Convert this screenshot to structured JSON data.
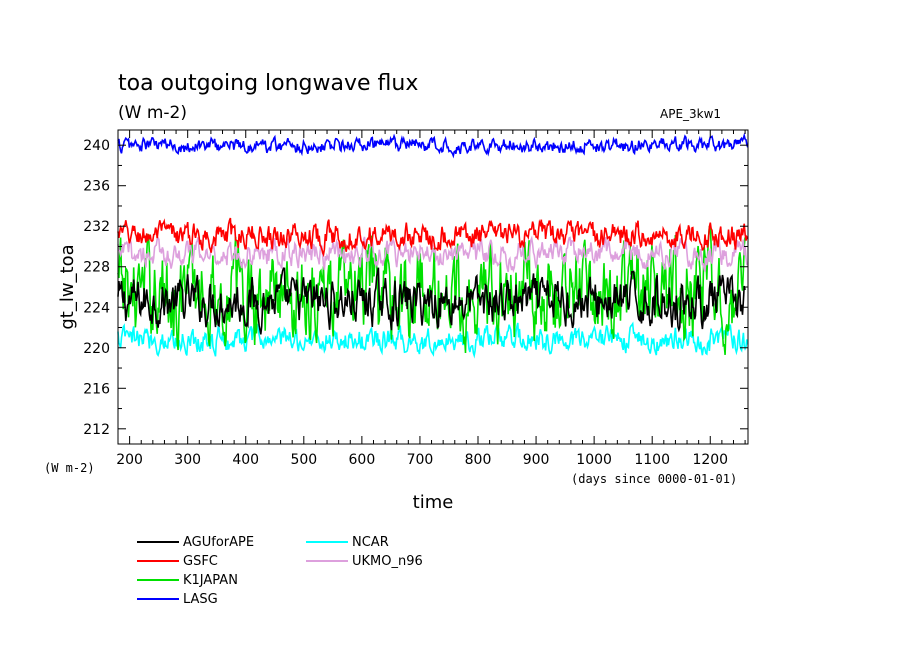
{
  "chart_data": {
    "type": "line",
    "title": "toa outgoing longwave flux",
    "units_title": "(W m-2)",
    "tag": "APE_3kw1",
    "xlabel": "time",
    "ylabel": "gt_lw_toa",
    "y_unit_label": "(W m-2)",
    "x_unit_label": "(days since 0000-01-01)",
    "xlim": [
      180,
      1265
    ],
    "ylim": [
      210.5,
      241.5
    ],
    "x_ticks": [
      200,
      300,
      400,
      500,
      600,
      700,
      800,
      900,
      1000,
      1100,
      1200
    ],
    "y_ticks": [
      212,
      216,
      220,
      224,
      228,
      232,
      236,
      240
    ],
    "series": [
      {
        "name": "AGUforAPE",
        "color": "#000000",
        "x_start": 180,
        "x_end": 1260,
        "mean": 224.6,
        "amp": 1.8
      },
      {
        "name": "GSFC",
        "color": "#ff0000",
        "x_start": 180,
        "x_end": 1265,
        "mean": 231.1,
        "amp": 1.0
      },
      {
        "name": "K1JAPAN",
        "color": "#00e000",
        "x_start": 180,
        "x_end": 1260,
        "mean": 225.5,
        "amp": 3.6
      },
      {
        "name": "LASG",
        "color": "#0000ff",
        "x_start": 180,
        "x_end": 1265,
        "mean": 240.0,
        "amp": 0.6
      },
      {
        "name": "NCAR",
        "color": "#00ffff",
        "x_start": 180,
        "x_end": 1265,
        "mean": 220.8,
        "amp": 1.0
      },
      {
        "name": "UKMO_n96",
        "color": "#dda0dd",
        "x_start": 180,
        "x_end": 1265,
        "mean": 229.3,
        "amp": 1.0
      }
    ]
  }
}
